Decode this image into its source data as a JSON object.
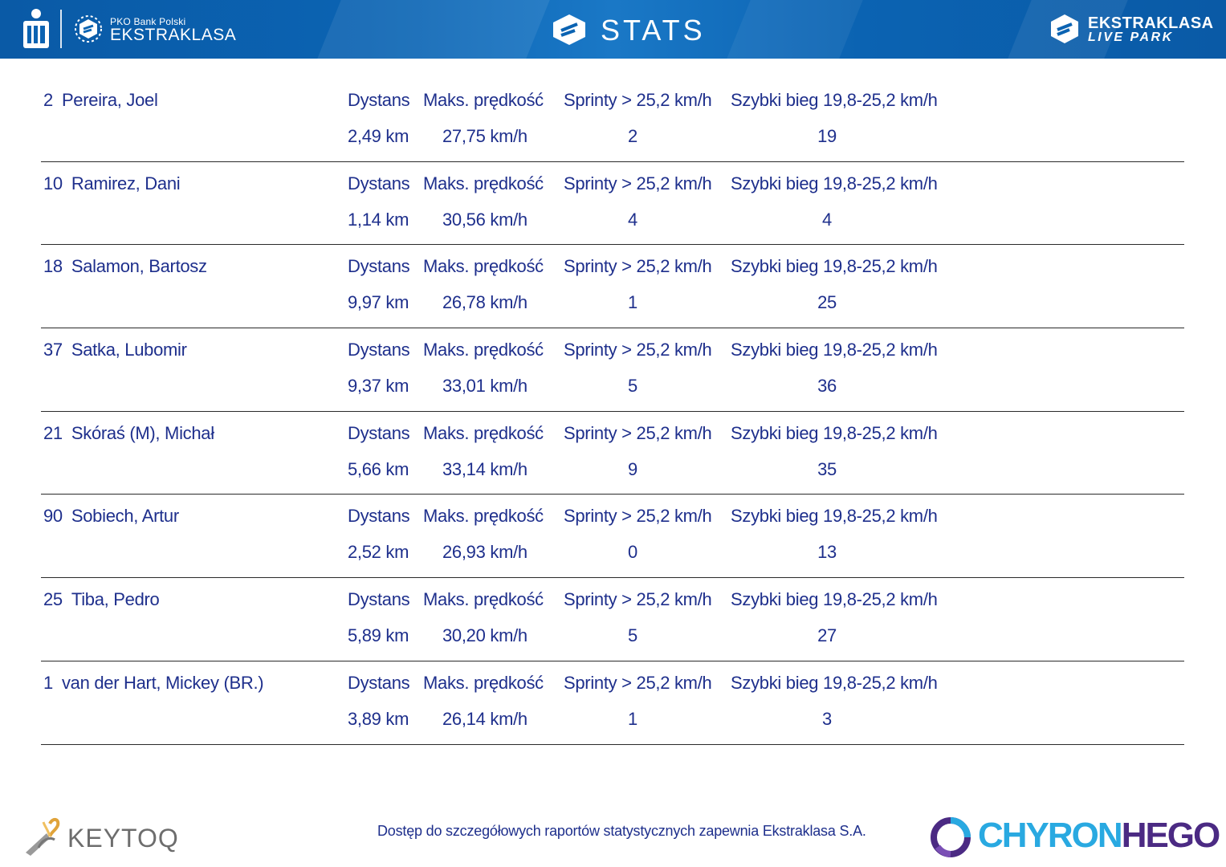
{
  "header": {
    "pko_small": "PKO Bank Polski",
    "pko_big": "EKSTRAKLASA",
    "title": "STATS",
    "live_park_line1": "EKSTRAKLASA",
    "live_park_line2": "LIVE PARK"
  },
  "labels": {
    "distance": "Dystans",
    "max_speed": "Maks. prędkość",
    "sprints": "Sprinty > 25,2 km/h",
    "fast_runs": "Szybki bieg 19,8-25,2 km/h"
  },
  "players": [
    {
      "number": "2",
      "name": "Pereira, Joel",
      "distance": "2,49 km",
      "max_speed": "27,75 km/h",
      "sprints": "2",
      "fast_runs": "19"
    },
    {
      "number": "10",
      "name": "Ramirez, Dani",
      "distance": "1,14 km",
      "max_speed": "30,56 km/h",
      "sprints": "4",
      "fast_runs": "4"
    },
    {
      "number": "18",
      "name": "Salamon, Bartosz",
      "distance": "9,97 km",
      "max_speed": "26,78 km/h",
      "sprints": "1",
      "fast_runs": "25"
    },
    {
      "number": "37",
      "name": "Satka, Lubomir",
      "distance": "9,37 km",
      "max_speed": "33,01 km/h",
      "sprints": "5",
      "fast_runs": "36"
    },
    {
      "number": "21",
      "name": "Skóraś (M), Michał",
      "distance": "5,66 km",
      "max_speed": "33,14 km/h",
      "sprints": "9",
      "fast_runs": "35"
    },
    {
      "number": "90",
      "name": "Sobiech, Artur",
      "distance": "2,52 km",
      "max_speed": "26,93 km/h",
      "sprints": "0",
      "fast_runs": "13"
    },
    {
      "number": "25",
      "name": "Tiba, Pedro",
      "distance": "5,89 km",
      "max_speed": "30,20 km/h",
      "sprints": "5",
      "fast_runs": "27"
    },
    {
      "number": "1",
      "name": "van der Hart, Mickey (BR.)",
      "distance": "3,89 km",
      "max_speed": "26,14 km/h",
      "sprints": "1",
      "fast_runs": "3"
    }
  ],
  "footer": {
    "keytoq": "KEYTOQ",
    "note": "Dostęp do szczegółowych raportów statystycznych zapewnia Ekstraklasa S.A.",
    "chyron_a": "CHYRON",
    "chyron_b": "HEGO"
  },
  "colors": {
    "header_blue": "#0b63b2",
    "text_navy": "#1e2f8c",
    "chyron_cyan": "#29a9e1",
    "chyron_purple": "#4b2a83"
  }
}
